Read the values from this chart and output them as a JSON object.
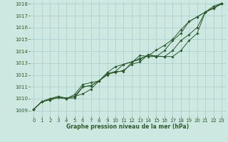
{
  "bg_color": "#cce8e0",
  "grid_color": "#aacccc",
  "line_color": "#2d5a2d",
  "text_color": "#2d5a2d",
  "xlabel": "Graphe pression niveau de la mer (hPa)",
  "ylim": [
    1008.5,
    1018.2
  ],
  "xlim": [
    -0.5,
    23.5
  ],
  "yticks": [
    1009,
    1010,
    1011,
    1012,
    1013,
    1014,
    1015,
    1016,
    1017,
    1018
  ],
  "xticks": [
    0,
    1,
    2,
    3,
    4,
    5,
    6,
    7,
    8,
    9,
    10,
    11,
    12,
    13,
    14,
    15,
    16,
    17,
    18,
    19,
    20,
    21,
    22,
    23
  ],
  "series": [
    {
      "x": [
        0,
        1,
        2,
        3,
        4,
        5,
        6,
        7,
        8,
        9,
        10,
        11,
        12,
        13,
        14,
        15,
        16,
        17,
        18,
        19,
        20,
        21,
        22,
        23
      ],
      "y": [
        1009.1,
        1009.75,
        1009.9,
        1010.1,
        1010.0,
        1010.2,
        1010.4,
        1010.8,
        1011.5,
        1012.1,
        1012.2,
        1012.4,
        1012.9,
        1013.1,
        1013.7,
        1013.6,
        1013.55,
        1013.55,
        1014.05,
        1014.9,
        1015.5,
        1017.3,
        1017.6,
        1018.0
      ]
    },
    {
      "x": [
        0,
        1,
        2,
        3,
        4,
        5,
        6,
        7,
        8,
        9,
        10,
        11,
        12,
        13,
        14,
        15,
        16,
        17,
        18,
        19,
        20,
        21,
        22,
        23
      ],
      "y": [
        1009.1,
        1009.75,
        1009.9,
        1010.1,
        1010.0,
        1010.2,
        1011.0,
        1011.1,
        1011.5,
        1012.1,
        1012.3,
        1012.9,
        1013.1,
        1013.3,
        1013.7,
        1013.55,
        1013.55,
        1014.05,
        1014.9,
        1015.4,
        1016.0,
        1017.3,
        1017.65,
        1018.0
      ]
    },
    {
      "x": [
        0,
        1,
        2,
        3,
        4,
        5,
        6,
        7,
        8,
        9,
        10,
        11,
        12,
        13,
        14,
        15,
        16,
        17,
        18,
        19,
        20,
        21,
        22,
        23
      ],
      "y": [
        1009.1,
        1009.75,
        1010.0,
        1010.1,
        1010.0,
        1010.35,
        1011.2,
        1011.35,
        1011.5,
        1012.0,
        1012.3,
        1012.3,
        1013.05,
        1013.65,
        1013.55,
        1013.55,
        1014.05,
        1014.9,
        1015.5,
        1016.5,
        1016.9,
        1017.3,
        1017.8,
        1018.05
      ]
    },
    {
      "x": [
        0,
        1,
        2,
        3,
        4,
        5,
        6,
        7,
        8,
        9,
        10,
        11,
        12,
        13,
        14,
        15,
        16,
        17,
        18,
        19,
        20,
        21,
        22,
        23
      ],
      "y": [
        1009.1,
        1009.75,
        1010.0,
        1010.2,
        1010.05,
        1010.05,
        1011.0,
        1011.1,
        1011.5,
        1012.2,
        1012.7,
        1012.9,
        1013.1,
        1013.4,
        1013.6,
        1014.1,
        1014.5,
        1015.0,
        1015.8,
        1016.5,
        1016.9,
        1017.3,
        1017.65,
        1018.05
      ]
    }
  ],
  "marker": "D",
  "markersize": 1.8,
  "linewidth": 0.7,
  "tick_fontsize": 5.0,
  "xlabel_fontsize": 5.5
}
